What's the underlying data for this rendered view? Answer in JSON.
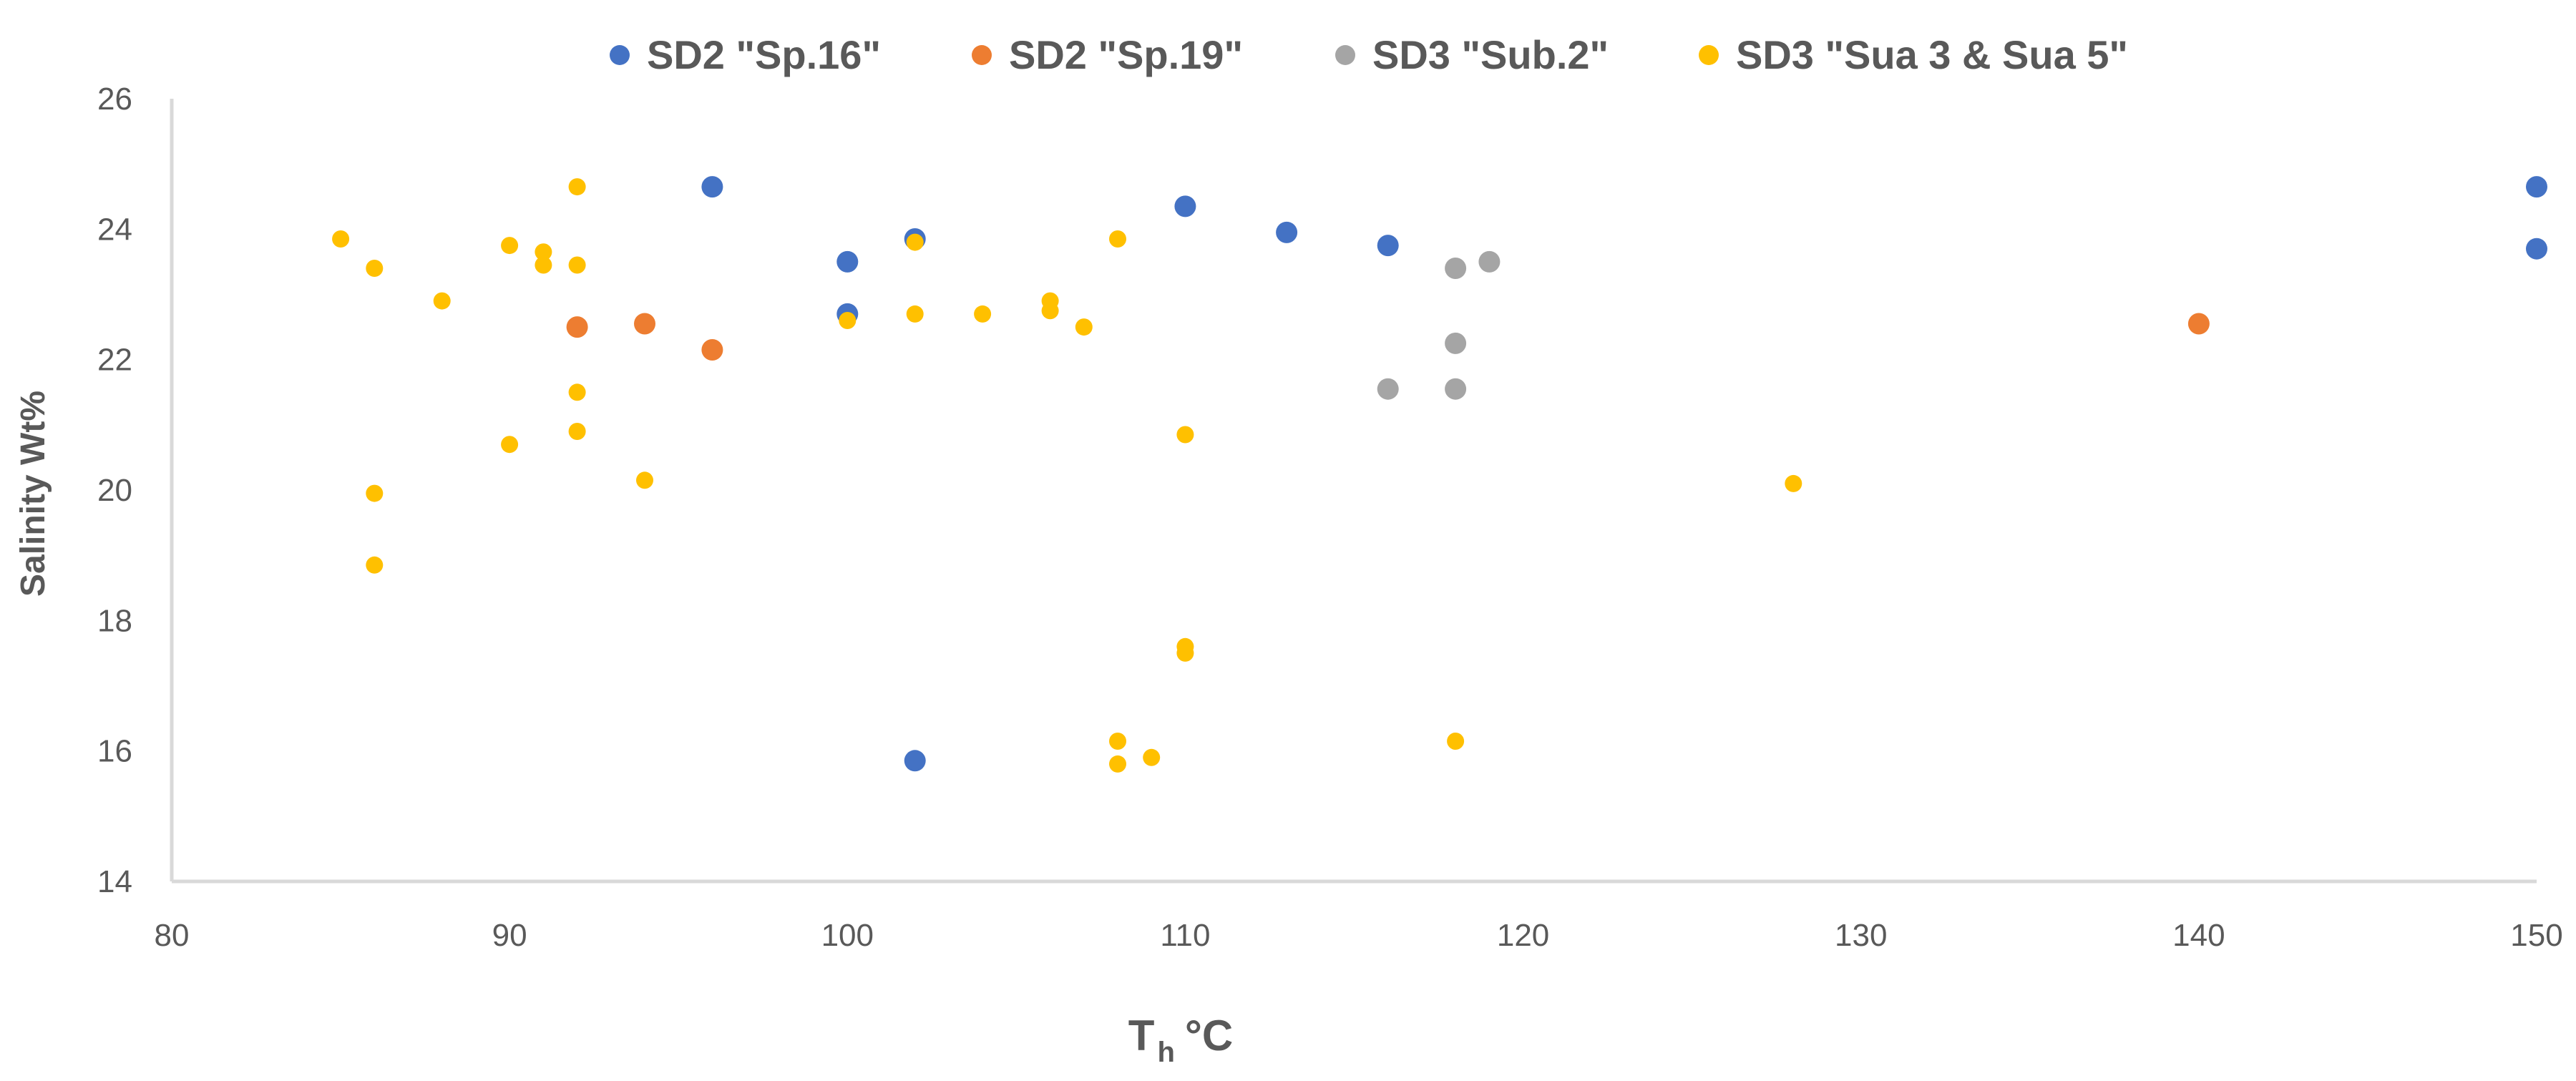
{
  "chart_data": {
    "type": "scatter",
    "title": "",
    "xlabel_main": "T",
    "xlabel_sub": "h",
    "xlabel_unit": "°C",
    "ylabel": "Salinity Wt%",
    "xlim": [
      80,
      150
    ],
    "ylim": [
      14,
      26
    ],
    "xticks": [
      80,
      90,
      100,
      110,
      120,
      130,
      140,
      150
    ],
    "yticks": [
      14,
      16,
      18,
      20,
      22,
      24,
      26
    ],
    "grid": false,
    "legend_position": "top",
    "series": [
      {
        "name": "SD2 \"Sp.16\"",
        "color": "#4472C4",
        "points": [
          [
            96,
            24.65
          ],
          [
            100,
            23.5
          ],
          [
            100,
            22.7
          ],
          [
            102,
            23.85
          ],
          [
            102,
            15.85
          ],
          [
            110,
            24.35
          ],
          [
            113,
            23.95
          ],
          [
            116,
            23.75
          ],
          [
            150,
            24.65
          ],
          [
            150,
            23.7
          ]
        ]
      },
      {
        "name": "SD2 \"Sp.19\"",
        "color": "#ED7D31",
        "points": [
          [
            92,
            22.5
          ],
          [
            94,
            22.55
          ],
          [
            96,
            22.15
          ],
          [
            140,
            22.55
          ]
        ]
      },
      {
        "name": "SD3 \"Sub.2\"",
        "color": "#A5A5A5",
        "points": [
          [
            116,
            21.55
          ],
          [
            118,
            23.4
          ],
          [
            118,
            22.25
          ],
          [
            118,
            21.55
          ],
          [
            119,
            23.5
          ]
        ]
      },
      {
        "name": "SD3 \"Sua 3 & Sua 5\"",
        "color": "#FFC000",
        "points": [
          [
            85,
            23.85
          ],
          [
            86,
            23.4
          ],
          [
            86,
            19.95
          ],
          [
            86,
            18.85
          ],
          [
            88,
            22.9
          ],
          [
            90,
            23.75
          ],
          [
            90,
            20.7
          ],
          [
            91,
            23.65
          ],
          [
            91,
            23.45
          ],
          [
            92,
            24.65
          ],
          [
            92,
            23.45
          ],
          [
            92,
            21.5
          ],
          [
            92,
            20.9
          ],
          [
            94,
            20.15
          ],
          [
            100,
            22.6
          ],
          [
            102,
            23.8
          ],
          [
            102,
            22.7
          ],
          [
            104,
            22.7
          ],
          [
            106,
            22.9
          ],
          [
            106,
            22.75
          ],
          [
            107,
            22.5
          ],
          [
            108,
            23.85
          ],
          [
            108,
            16.15
          ],
          [
            108,
            15.8
          ],
          [
            109,
            15.9
          ],
          [
            110,
            20.85
          ],
          [
            110,
            17.6
          ],
          [
            110,
            17.5
          ],
          [
            118,
            16.15
          ],
          [
            128,
            20.1
          ]
        ]
      }
    ]
  }
}
